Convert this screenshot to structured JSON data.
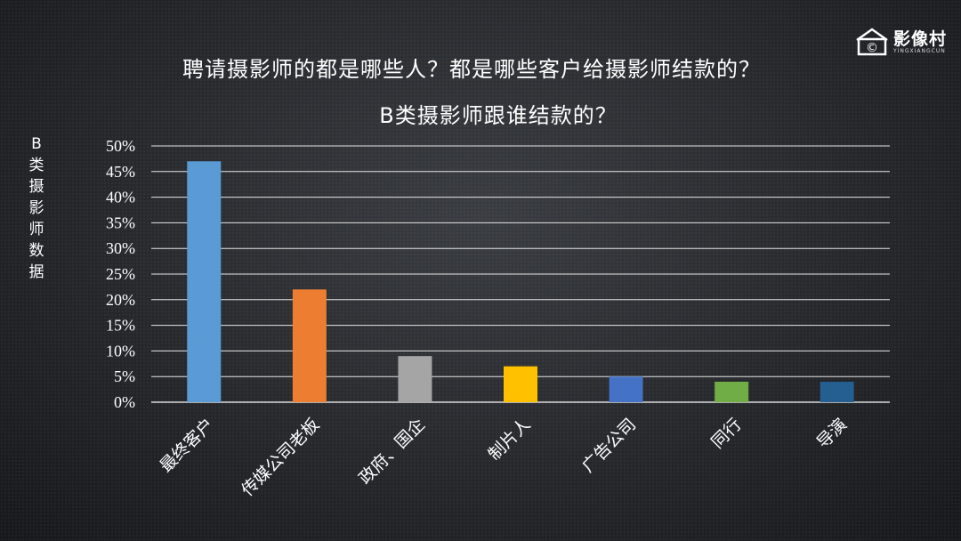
{
  "title": "聘请摄影师的都是哪些人？都是哪些客户给摄影师结款的？",
  "logo": {
    "name": "影像村",
    "sub": "YINGXIANGCUN",
    "mark": "©"
  },
  "chart_data": {
    "type": "bar",
    "title": "B类摄影师跟谁结款的？",
    "ylabel": "B类摄影师数据",
    "xlabel": "",
    "categories": [
      "最终客户",
      "传媒公司老板",
      "政府、国企",
      "制片人",
      "广告公司",
      "同行",
      "导演"
    ],
    "values": [
      47,
      22,
      9,
      7,
      5,
      4,
      4
    ],
    "colors": [
      "#5b9bd5",
      "#ed7d31",
      "#a5a5a5",
      "#ffc000",
      "#4472c4",
      "#70ad47",
      "#255e91"
    ],
    "ylim": [
      0,
      50
    ],
    "yticks": [
      "0%",
      "5%",
      "10%",
      "15%",
      "20%",
      "25%",
      "30%",
      "35%",
      "40%",
      "45%",
      "50%"
    ],
    "grid": true,
    "legend": "none"
  }
}
